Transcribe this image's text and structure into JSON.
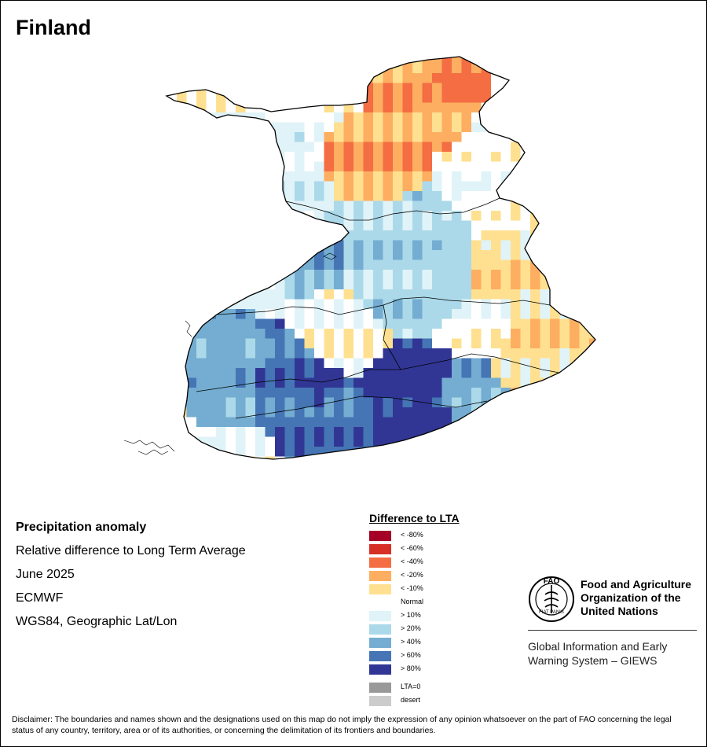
{
  "map": {
    "title": "Finland"
  },
  "info": {
    "line1": "Precipitation anomaly",
    "line2": "Relative difference to Long Term Average",
    "line3": "June 2025",
    "line4": "ECMWF",
    "line5": "WGS84, Geographic Lat/Lon"
  },
  "legend": {
    "title": "Difference to LTA",
    "items": [
      {
        "label": "< -80%",
        "color": "#a50026"
      },
      {
        "label": "< -60%",
        "color": "#d73027"
      },
      {
        "label": "< -40%",
        "color": "#f46d43"
      },
      {
        "label": "< -20%",
        "color": "#fdae61"
      },
      {
        "label": "< -10%",
        "color": "#fee090"
      },
      {
        "label": "Normal",
        "color": "#ffffff"
      },
      {
        "label": "> 10%",
        "color": "#e0f3f8"
      },
      {
        "label": "> 20%",
        "color": "#abd9e9"
      },
      {
        "label": "> 40%",
        "color": "#74add1"
      },
      {
        "label": "> 60%",
        "color": "#4575b4"
      },
      {
        "label": "> 80%",
        "color": "#313695"
      }
    ],
    "extra": [
      {
        "label": "LTA=0",
        "color": "#999999"
      },
      {
        "label": "desert",
        "color": "#cccccc"
      }
    ]
  },
  "logo": {
    "letters": "FAO",
    "ring_text": "FIAT PANIS",
    "org_line1": "Food and Agriculture",
    "org_line2": "Organization of the",
    "org_line3": "United Nations",
    "giews_line1": "Global Information and Early",
    "giews_line2": "Warning System – GIEWS"
  },
  "disclaimer": "Disclaimer: The boundaries and names shown and the designations used on this map do not imply the expression of any opinion whatsoever on the part of FAO concerning the legal status of any country, territory, area or of its authorities, or concerning the delimitation of its frontiers and boundaries."
}
